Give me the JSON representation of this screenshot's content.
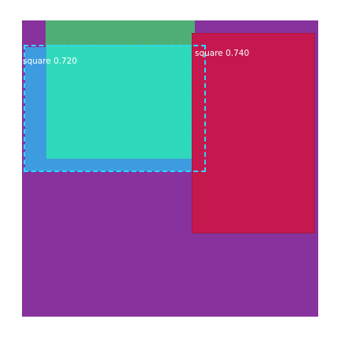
{
  "detections": [
    {
      "label": "square 0.720",
      "color": "#2fd9bb"
    },
    {
      "label": "square 0.740",
      "color": "#c4184e"
    }
  ],
  "background_color": "#87329d",
  "outline_color": "#2fd9ff"
}
